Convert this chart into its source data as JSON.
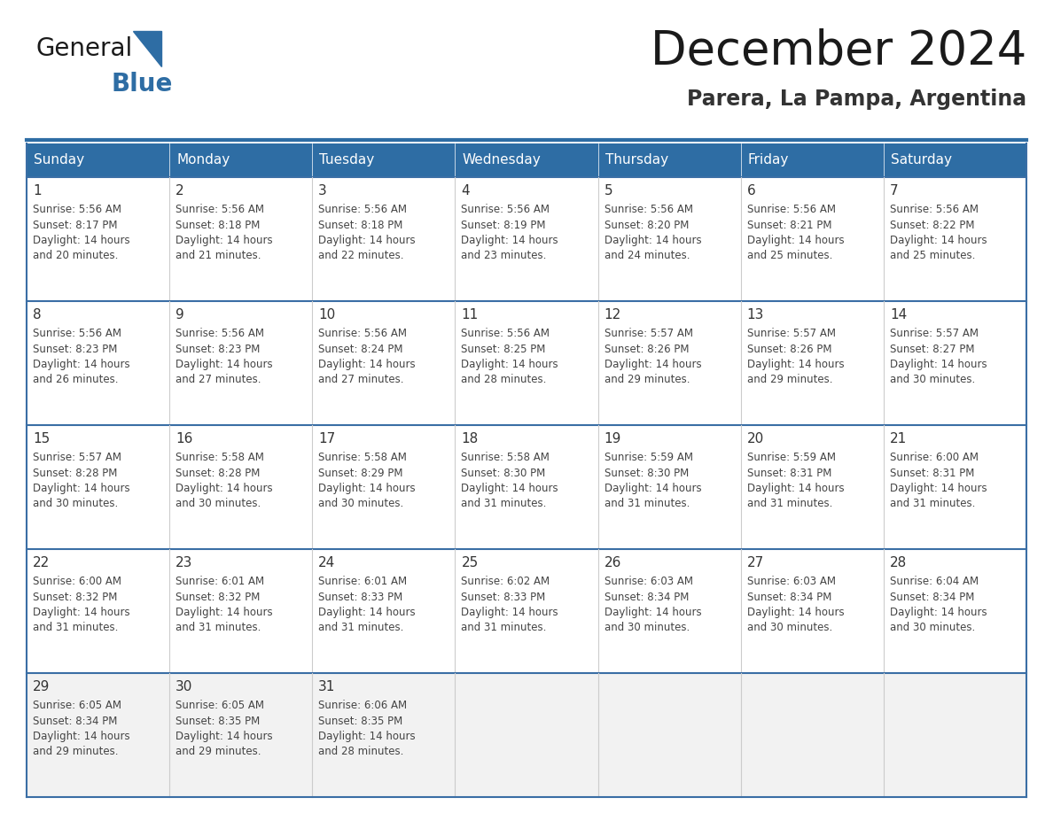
{
  "title": "December 2024",
  "subtitle": "Parera, La Pampa, Argentina",
  "days_of_week": [
    "Sunday",
    "Monday",
    "Tuesday",
    "Wednesday",
    "Thursday",
    "Friday",
    "Saturday"
  ],
  "header_bg_color": "#2E6DA4",
  "header_text_color": "#FFFFFF",
  "cell_bg_color": "#FFFFFF",
  "cell_last_row_bg": "#F2F2F2",
  "cell_border_color": "#3A6EA5",
  "day_num_color": "#333333",
  "cell_text_color": "#444444",
  "title_color": "#1a1a1a",
  "subtitle_color": "#333333",
  "logo_general_color": "#1a1a1a",
  "logo_blue_color": "#2E6DA4",
  "calendar_data": [
    [
      {
        "day": 1,
        "sunrise": "5:56 AM",
        "sunset": "8:17 PM",
        "daylight_hours": 14,
        "daylight_minutes": 20
      },
      {
        "day": 2,
        "sunrise": "5:56 AM",
        "sunset": "8:18 PM",
        "daylight_hours": 14,
        "daylight_minutes": 21
      },
      {
        "day": 3,
        "sunrise": "5:56 AM",
        "sunset": "8:18 PM",
        "daylight_hours": 14,
        "daylight_minutes": 22
      },
      {
        "day": 4,
        "sunrise": "5:56 AM",
        "sunset": "8:19 PM",
        "daylight_hours": 14,
        "daylight_minutes": 23
      },
      {
        "day": 5,
        "sunrise": "5:56 AM",
        "sunset": "8:20 PM",
        "daylight_hours": 14,
        "daylight_minutes": 24
      },
      {
        "day": 6,
        "sunrise": "5:56 AM",
        "sunset": "8:21 PM",
        "daylight_hours": 14,
        "daylight_minutes": 25
      },
      {
        "day": 7,
        "sunrise": "5:56 AM",
        "sunset": "8:22 PM",
        "daylight_hours": 14,
        "daylight_minutes": 25
      }
    ],
    [
      {
        "day": 8,
        "sunrise": "5:56 AM",
        "sunset": "8:23 PM",
        "daylight_hours": 14,
        "daylight_minutes": 26
      },
      {
        "day": 9,
        "sunrise": "5:56 AM",
        "sunset": "8:23 PM",
        "daylight_hours": 14,
        "daylight_minutes": 27
      },
      {
        "day": 10,
        "sunrise": "5:56 AM",
        "sunset": "8:24 PM",
        "daylight_hours": 14,
        "daylight_minutes": 27
      },
      {
        "day": 11,
        "sunrise": "5:56 AM",
        "sunset": "8:25 PM",
        "daylight_hours": 14,
        "daylight_minutes": 28
      },
      {
        "day": 12,
        "sunrise": "5:57 AM",
        "sunset": "8:26 PM",
        "daylight_hours": 14,
        "daylight_minutes": 29
      },
      {
        "day": 13,
        "sunrise": "5:57 AM",
        "sunset": "8:26 PM",
        "daylight_hours": 14,
        "daylight_minutes": 29
      },
      {
        "day": 14,
        "sunrise": "5:57 AM",
        "sunset": "8:27 PM",
        "daylight_hours": 14,
        "daylight_minutes": 30
      }
    ],
    [
      {
        "day": 15,
        "sunrise": "5:57 AM",
        "sunset": "8:28 PM",
        "daylight_hours": 14,
        "daylight_minutes": 30
      },
      {
        "day": 16,
        "sunrise": "5:58 AM",
        "sunset": "8:28 PM",
        "daylight_hours": 14,
        "daylight_minutes": 30
      },
      {
        "day": 17,
        "sunrise": "5:58 AM",
        "sunset": "8:29 PM",
        "daylight_hours": 14,
        "daylight_minutes": 30
      },
      {
        "day": 18,
        "sunrise": "5:58 AM",
        "sunset": "8:30 PM",
        "daylight_hours": 14,
        "daylight_minutes": 31
      },
      {
        "day": 19,
        "sunrise": "5:59 AM",
        "sunset": "8:30 PM",
        "daylight_hours": 14,
        "daylight_minutes": 31
      },
      {
        "day": 20,
        "sunrise": "5:59 AM",
        "sunset": "8:31 PM",
        "daylight_hours": 14,
        "daylight_minutes": 31
      },
      {
        "day": 21,
        "sunrise": "6:00 AM",
        "sunset": "8:31 PM",
        "daylight_hours": 14,
        "daylight_minutes": 31
      }
    ],
    [
      {
        "day": 22,
        "sunrise": "6:00 AM",
        "sunset": "8:32 PM",
        "daylight_hours": 14,
        "daylight_minutes": 31
      },
      {
        "day": 23,
        "sunrise": "6:01 AM",
        "sunset": "8:32 PM",
        "daylight_hours": 14,
        "daylight_minutes": 31
      },
      {
        "day": 24,
        "sunrise": "6:01 AM",
        "sunset": "8:33 PM",
        "daylight_hours": 14,
        "daylight_minutes": 31
      },
      {
        "day": 25,
        "sunrise": "6:02 AM",
        "sunset": "8:33 PM",
        "daylight_hours": 14,
        "daylight_minutes": 31
      },
      {
        "day": 26,
        "sunrise": "6:03 AM",
        "sunset": "8:34 PM",
        "daylight_hours": 14,
        "daylight_minutes": 30
      },
      {
        "day": 27,
        "sunrise": "6:03 AM",
        "sunset": "8:34 PM",
        "daylight_hours": 14,
        "daylight_minutes": 30
      },
      {
        "day": 28,
        "sunrise": "6:04 AM",
        "sunset": "8:34 PM",
        "daylight_hours": 14,
        "daylight_minutes": 30
      }
    ],
    [
      {
        "day": 29,
        "sunrise": "6:05 AM",
        "sunset": "8:34 PM",
        "daylight_hours": 14,
        "daylight_minutes": 29
      },
      {
        "day": 30,
        "sunrise": "6:05 AM",
        "sunset": "8:35 PM",
        "daylight_hours": 14,
        "daylight_minutes": 29
      },
      {
        "day": 31,
        "sunrise": "6:06 AM",
        "sunset": "8:35 PM",
        "daylight_hours": 14,
        "daylight_minutes": 28
      },
      null,
      null,
      null,
      null
    ]
  ]
}
